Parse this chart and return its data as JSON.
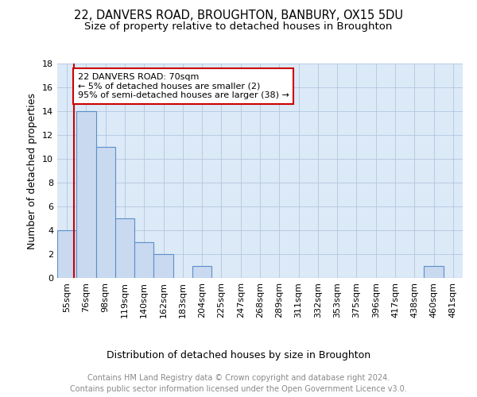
{
  "title": "22, DANVERS ROAD, BROUGHTON, BANBURY, OX15 5DU",
  "subtitle": "Size of property relative to detached houses in Broughton",
  "xlabel": "Distribution of detached houses by size in Broughton",
  "ylabel": "Number of detached properties",
  "categories": [
    "55sqm",
    "76sqm",
    "98sqm",
    "119sqm",
    "140sqm",
    "162sqm",
    "183sqm",
    "204sqm",
    "225sqm",
    "247sqm",
    "268sqm",
    "289sqm",
    "311sqm",
    "332sqm",
    "353sqm",
    "375sqm",
    "396sqm",
    "417sqm",
    "438sqm",
    "460sqm",
    "481sqm"
  ],
  "values": [
    4,
    14,
    11,
    5,
    3,
    2,
    0,
    1,
    0,
    0,
    0,
    0,
    0,
    0,
    0,
    0,
    0,
    0,
    0,
    1,
    0
  ],
  "bar_color": "#c9d9f0",
  "bar_edge_color": "#5b8fc9",
  "background_color": "#dce9f7",
  "annotation_text": "22 DANVERS ROAD: 70sqm\n← 5% of detached houses are smaller (2)\n95% of semi-detached houses are larger (38) →",
  "annotation_box_color": "#ffffff",
  "annotation_box_edge_color": "#cc0000",
  "footer_line1": "Contains HM Land Registry data © Crown copyright and database right 2024.",
  "footer_line2": "Contains public sector information licensed under the Open Government Licence v3.0.",
  "ylim": [
    0,
    18
  ],
  "yticks": [
    0,
    2,
    4,
    6,
    8,
    10,
    12,
    14,
    16,
    18
  ],
  "red_line_index": 0.38,
  "title_fontsize": 10.5,
  "subtitle_fontsize": 9.5,
  "xlabel_fontsize": 9,
  "ylabel_fontsize": 9,
  "tick_fontsize": 8,
  "footer_fontsize": 7,
  "annotation_fontsize": 8
}
